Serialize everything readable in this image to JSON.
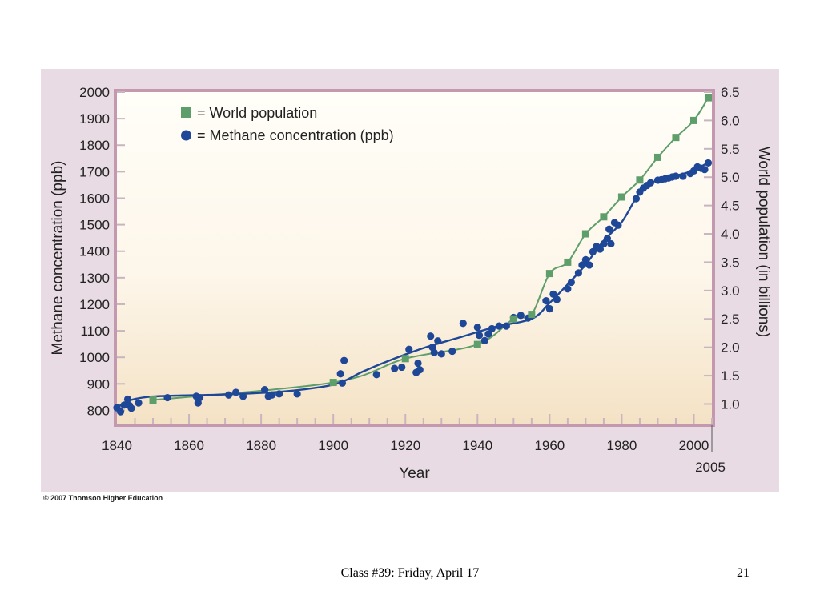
{
  "chart_data": {
    "type": "line",
    "xlabel": "Year",
    "ylabel_left": "Methane concentration (ppb)",
    "ylabel_right": "World population (in billions)",
    "xlim": [
      1840,
      2005
    ],
    "ylim_left": [
      750,
      2000
    ],
    "ylim_right": [
      0.6535,
      6.5
    ],
    "x_ticks": [
      1840,
      1860,
      1880,
      1900,
      1920,
      1940,
      1960,
      1980,
      2000
    ],
    "x_extra_tick": 2005,
    "y_ticks_left": [
      800,
      900,
      1000,
      1100,
      1200,
      1300,
      1400,
      1500,
      1600,
      1700,
      1800,
      1900,
      2000
    ],
    "y_ticks_right": [
      "1.0",
      "1.5",
      "2.0",
      "2.5",
      "3.0",
      "3.5",
      "4.0",
      "4.5",
      "5.0",
      "5.5",
      "6.0",
      "6.5"
    ],
    "legend": {
      "placement": "top-left",
      "items": [
        {
          "label": "= World population",
          "marker": "square",
          "color": "#5e9e6a"
        },
        {
          "label": "= Methane concentration (ppb)",
          "marker": "circle",
          "color": "#1f4797"
        }
      ]
    },
    "series": [
      {
        "name": "World population",
        "axis": "right",
        "color": "#5e9e6a",
        "marker": "square",
        "points": [
          [
            1850,
            1.07
          ],
          [
            1900,
            1.38
          ],
          [
            1920,
            1.8
          ],
          [
            1940,
            2.05
          ],
          [
            1950,
            2.5
          ],
          [
            1955,
            2.58
          ],
          [
            1960,
            3.3
          ],
          [
            1965,
            3.5
          ],
          [
            1970,
            4.0
          ],
          [
            1975,
            4.3
          ],
          [
            1980,
            4.65
          ],
          [
            1985,
            4.95
          ],
          [
            1990,
            5.35
          ],
          [
            1995,
            5.7
          ],
          [
            2000,
            6.0
          ],
          [
            2004,
            6.4
          ]
        ]
      },
      {
        "name": "Methane concentration (ppb)",
        "axis": "left",
        "color": "#1f4797",
        "marker": "circle",
        "curve": [
          [
            1840,
            810
          ],
          [
            1843,
            835
          ],
          [
            1848,
            850
          ],
          [
            1855,
            855
          ],
          [
            1870,
            860
          ],
          [
            1885,
            870
          ],
          [
            1895,
            885
          ],
          [
            1902,
            905
          ],
          [
            1908,
            945
          ],
          [
            1915,
            985
          ],
          [
            1925,
            1035
          ],
          [
            1935,
            1075
          ],
          [
            1945,
            1115
          ],
          [
            1955,
            1145
          ],
          [
            1960,
            1205
          ],
          [
            1965,
            1275
          ],
          [
            1970,
            1350
          ],
          [
            1975,
            1440
          ],
          [
            1980,
            1510
          ],
          [
            1985,
            1620
          ],
          [
            1990,
            1670
          ],
          [
            1995,
            1685
          ],
          [
            2000,
            1705
          ],
          [
            2004,
            1735
          ]
        ],
        "points": [
          [
            1840,
            810
          ],
          [
            1841,
            795
          ],
          [
            1842,
            820
          ],
          [
            1843,
            842
          ],
          [
            1843.5,
            818
          ],
          [
            1844,
            808
          ],
          [
            1846,
            828
          ],
          [
            1854,
            848
          ],
          [
            1862,
            853
          ],
          [
            1862.5,
            828
          ],
          [
            1863,
            848
          ],
          [
            1871,
            858
          ],
          [
            1873,
            868
          ],
          [
            1875,
            853
          ],
          [
            1881,
            878
          ],
          [
            1882,
            853
          ],
          [
            1883,
            858
          ],
          [
            1885,
            862
          ],
          [
            1890,
            862
          ],
          [
            1902,
            938
          ],
          [
            1902.5,
            903
          ],
          [
            1903,
            988
          ],
          [
            1912,
            935
          ],
          [
            1917,
            958
          ],
          [
            1919,
            963
          ],
          [
            1921,
            1030
          ],
          [
            1923,
            943
          ],
          [
            1923.5,
            978
          ],
          [
            1924,
            953
          ],
          [
            1927,
            1080
          ],
          [
            1927.5,
            1038
          ],
          [
            1928,
            1018
          ],
          [
            1929,
            1062
          ],
          [
            1930,
            1013
          ],
          [
            1933,
            1023
          ],
          [
            1936,
            1128
          ],
          [
            1940,
            1113
          ],
          [
            1940.5,
            1083
          ],
          [
            1942,
            1063
          ],
          [
            1943,
            1088
          ],
          [
            1944,
            1108
          ],
          [
            1946,
            1118
          ],
          [
            1948,
            1118
          ],
          [
            1950,
            1150
          ],
          [
            1952,
            1158
          ],
          [
            1954,
            1148
          ],
          [
            1959,
            1213
          ],
          [
            1960,
            1183
          ],
          [
            1961,
            1238
          ],
          [
            1962,
            1218
          ],
          [
            1965,
            1258
          ],
          [
            1966,
            1283
          ],
          [
            1968,
            1318
          ],
          [
            1969,
            1348
          ],
          [
            1970,
            1368
          ],
          [
            1971,
            1348
          ],
          [
            1972,
            1398
          ],
          [
            1973,
            1418
          ],
          [
            1974,
            1408
          ],
          [
            1975,
            1428
          ],
          [
            1976,
            1448
          ],
          [
            1976.5,
            1483
          ],
          [
            1977,
            1428
          ],
          [
            1978,
            1508
          ],
          [
            1979,
            1498
          ],
          [
            1984,
            1598
          ],
          [
            1985,
            1623
          ],
          [
            1986,
            1638
          ],
          [
            1987,
            1648
          ],
          [
            1988,
            1658
          ],
          [
            1990,
            1668
          ],
          [
            1991,
            1670
          ],
          [
            1992,
            1673
          ],
          [
            1993,
            1676
          ],
          [
            1994,
            1680
          ],
          [
            1995,
            1683
          ],
          [
            1997,
            1683
          ],
          [
            1999,
            1693
          ],
          [
            2000,
            1703
          ],
          [
            2001,
            1718
          ],
          [
            2002,
            1713
          ],
          [
            2003,
            1708
          ],
          [
            2004,
            1733
          ]
        ]
      }
    ]
  },
  "copyright": "© 2007 Thomson Higher Education",
  "footer": {
    "center": "Class #39: Friday, April 17",
    "page": "21"
  },
  "colors": {
    "frame": "#c499b0",
    "background": "#e9dbe4",
    "plot_top": "#fffef8",
    "plot_bottom": "#f4e2c5",
    "population": "#5e9e6a",
    "methane": "#1f4797"
  }
}
